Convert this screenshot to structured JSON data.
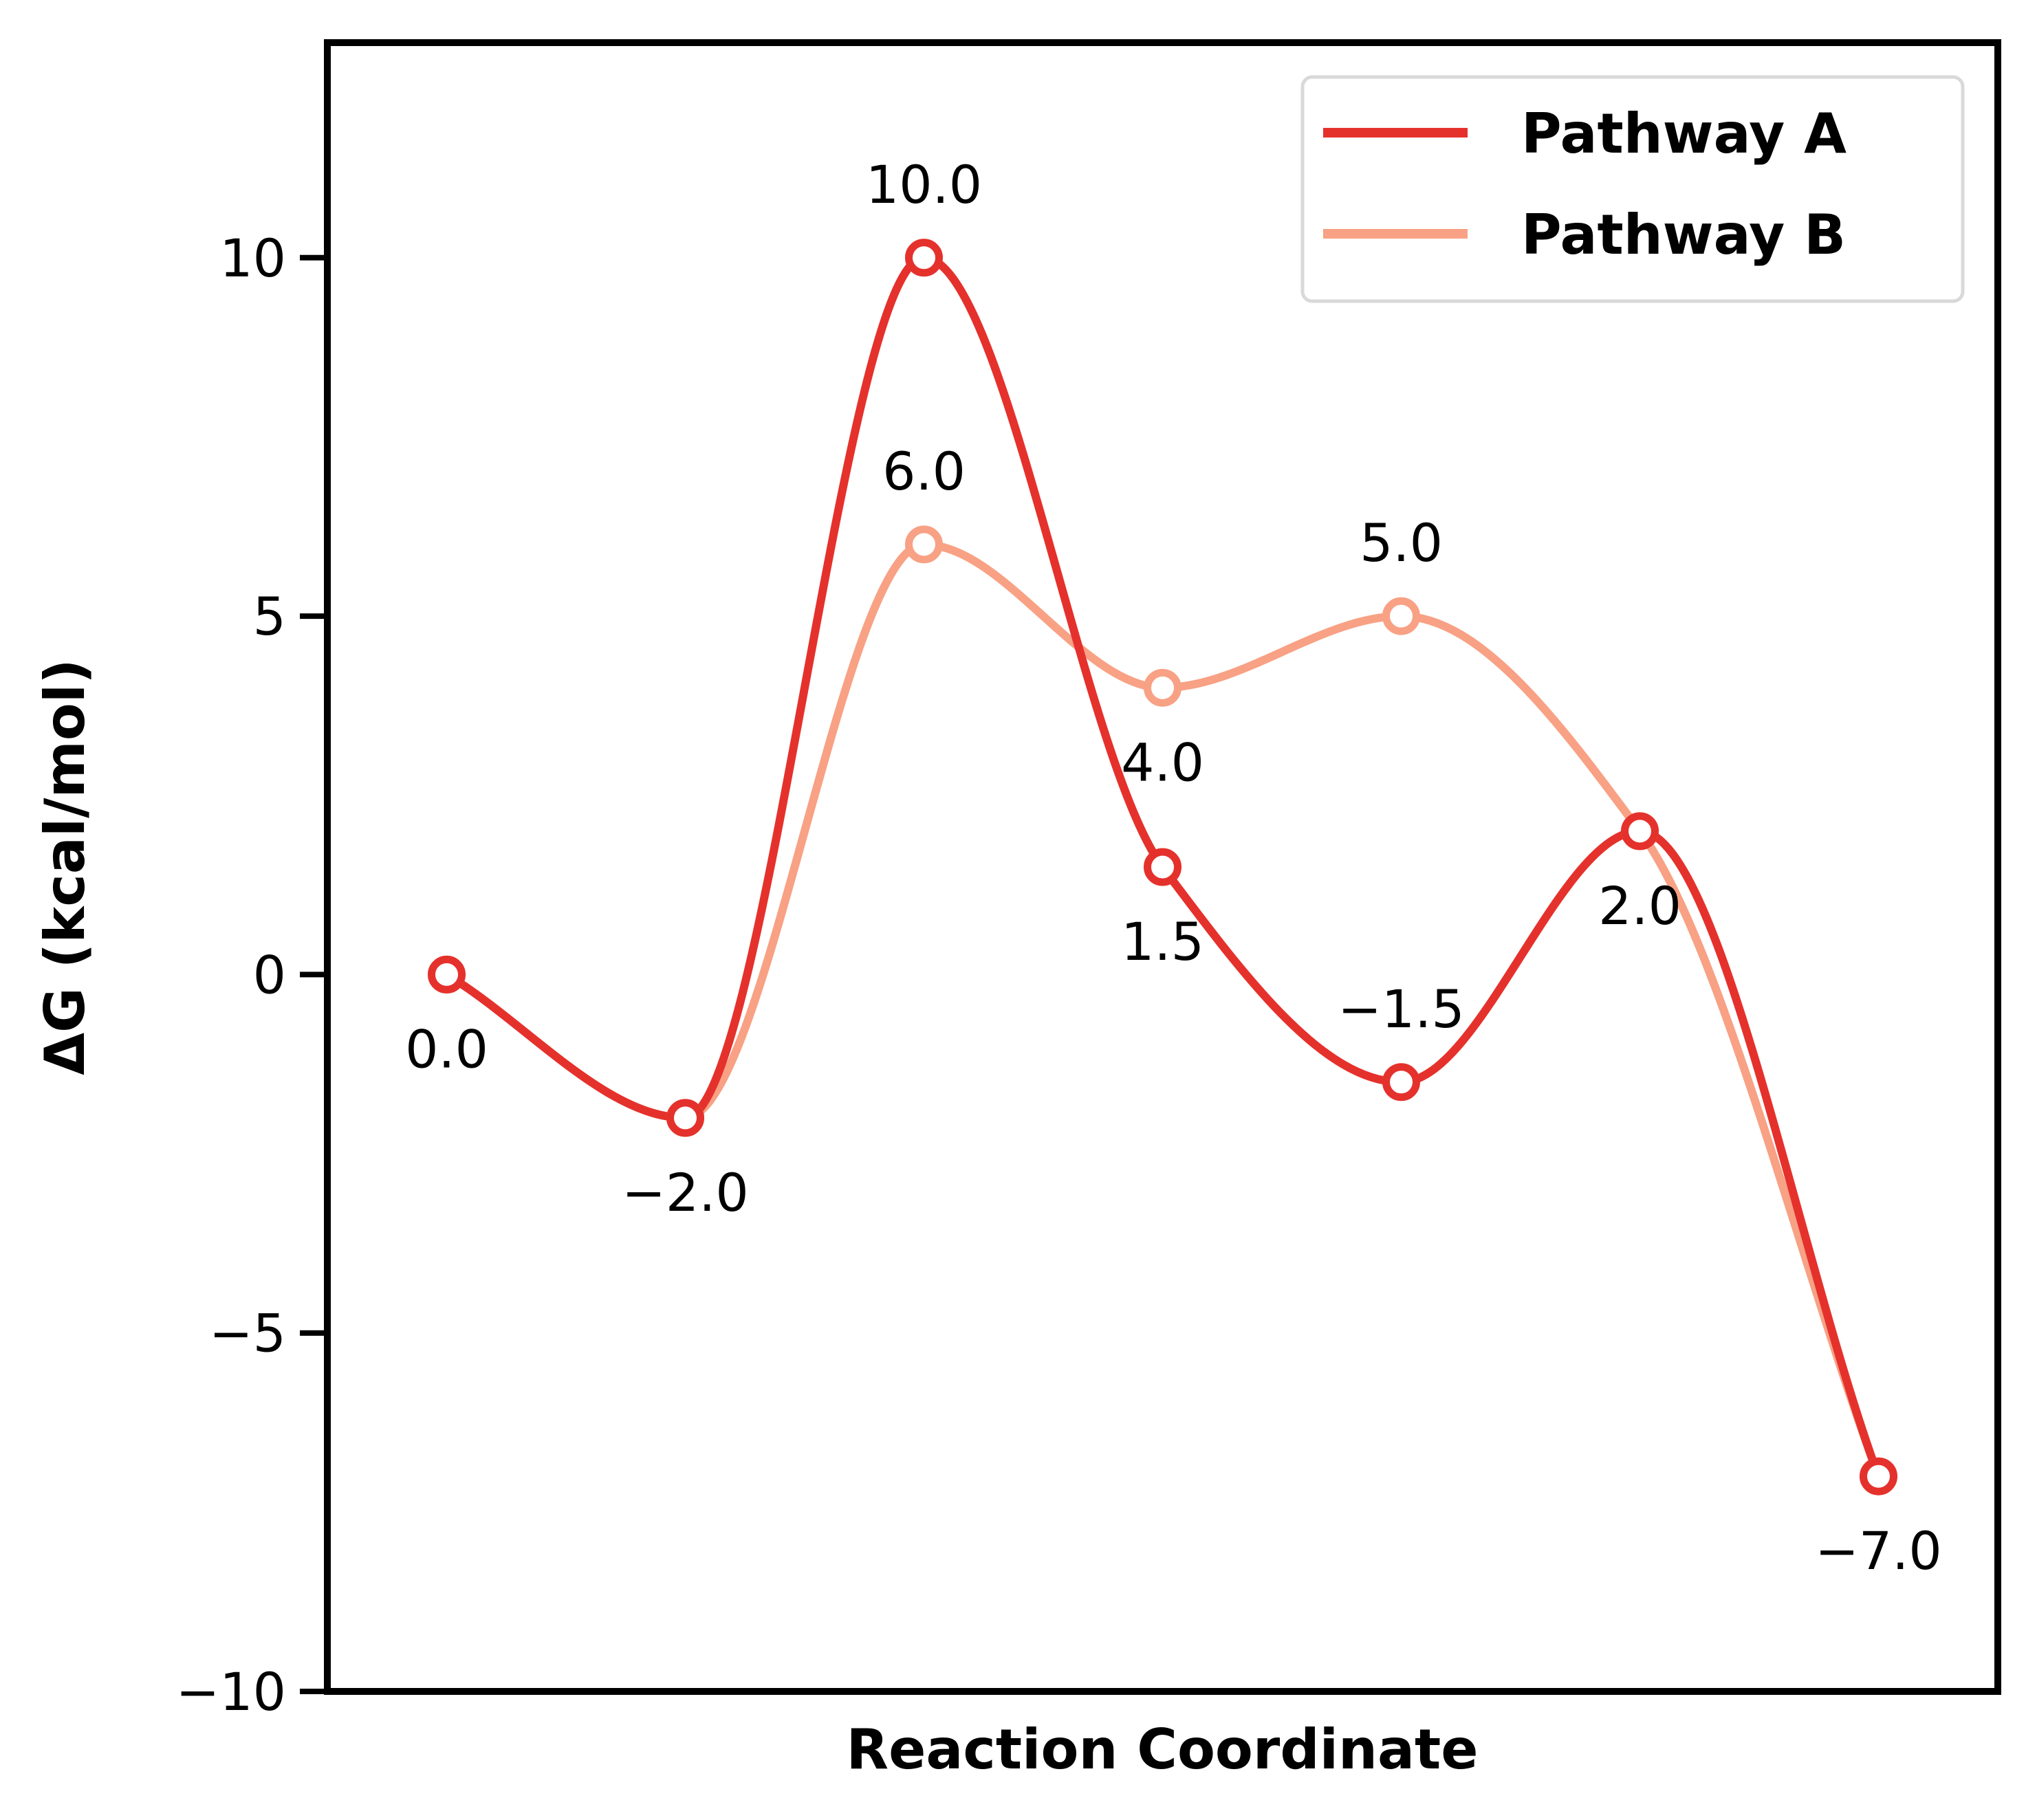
{
  "chart_data": {
    "type": "line",
    "title": "",
    "xlabel": "Reaction Coordinate",
    "ylabel": "ΔG (kcal/mol)",
    "x": [
      0,
      1,
      2,
      3,
      4,
      5,
      6
    ],
    "xlim": [
      -0.5,
      6.5
    ],
    "ylim": [
      -10,
      13
    ],
    "yticks": [
      -10,
      -5,
      0,
      5,
      10
    ],
    "ytick_labels": [
      "−10",
      "−5",
      "0",
      "5",
      "10"
    ],
    "grid": false,
    "legend": "top-right",
    "series": [
      {
        "name": "Pathway A",
        "color": "#e5312c",
        "values": [
          0.0,
          -2.0,
          10.0,
          1.5,
          -1.5,
          2.0,
          -7.0
        ],
        "labels": [
          "0.0",
          "−2.0",
          "10.0",
          "1.5",
          "−1.5",
          "2.0",
          "−7.0"
        ]
      },
      {
        "name": "Pathway B",
        "color": "#f8a184",
        "values": [
          0.0,
          -2.0,
          6.0,
          4.0,
          5.0,
          2.0,
          -7.0
        ],
        "labels": [
          null,
          null,
          "6.0",
          "4.0",
          "5.0",
          null,
          null
        ]
      }
    ]
  }
}
